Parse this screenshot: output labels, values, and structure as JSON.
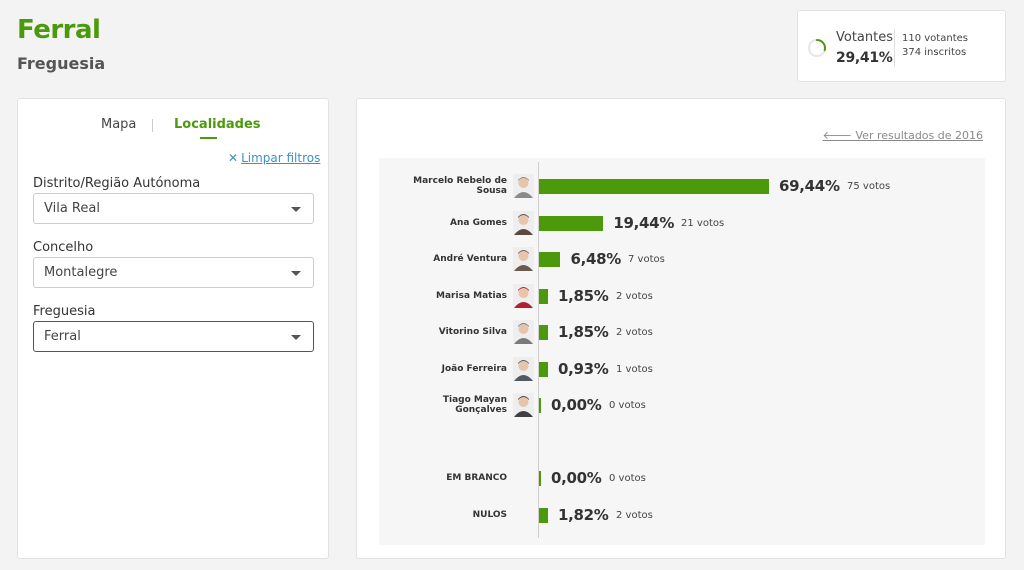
{
  "header": {
    "title": "Ferral",
    "subtitle": "Freguesia"
  },
  "stats": {
    "label": "Votantes",
    "percent": "29,41%",
    "percent_value": 0.2941,
    "voters": "110 votantes",
    "registered": "374 inscritos"
  },
  "filters": {
    "tab_map": "Mapa",
    "tab_localities": "Localidades",
    "clear_label": "Limpar filtros",
    "district_label": "Distrito/Região Autónoma",
    "district_value": "Vila Real",
    "council_label": "Concelho",
    "council_value": "Montalegre",
    "parish_label": "Freguesia",
    "parish_value": "Ferral"
  },
  "results": {
    "link_previous": "Ver resultados de 2016"
  },
  "chart_data": {
    "type": "bar",
    "orientation": "horizontal",
    "title": "",
    "xlabel": "",
    "ylabel": "",
    "categories": [
      "Marcelo Rebelo de Sousa",
      "Ana Gomes",
      "André Ventura",
      "Marisa Matias",
      "Vitorino Silva",
      "João Ferreira",
      "Tiago Mayan Gonçalves",
      "EM BRANCO",
      "NULOS"
    ],
    "values": [
      69.44,
      19.44,
      6.48,
      1.85,
      1.85,
      0.93,
      0.0,
      0.0,
      1.82
    ],
    "percent_labels": [
      "69,44%",
      "19,44%",
      "6,48%",
      "1,85%",
      "1,85%",
      "0,93%",
      "0,00%",
      "0,00%",
      "1,82%"
    ],
    "vote_labels": [
      "75 votos",
      "21 votos",
      "7 votos",
      "2 votos",
      "2 votos",
      "1 votos",
      "0 votos",
      "0 votos",
      "2 votos"
    ],
    "name_lines": [
      [
        "Marcelo Rebelo de",
        "Sousa"
      ],
      [
        "Ana Gomes"
      ],
      [
        "André Ventura"
      ],
      [
        "Marisa Matias"
      ],
      [
        "Vitorino Silva"
      ],
      [
        "João Ferreira"
      ],
      [
        "Tiago Mayan",
        "Gonçalves"
      ],
      [
        "EM BRANCO"
      ],
      [
        "NULOS"
      ]
    ],
    "has_avatar": [
      true,
      true,
      true,
      true,
      true,
      true,
      true,
      false,
      false
    ],
    "bar_color": "#4c9a0c"
  }
}
